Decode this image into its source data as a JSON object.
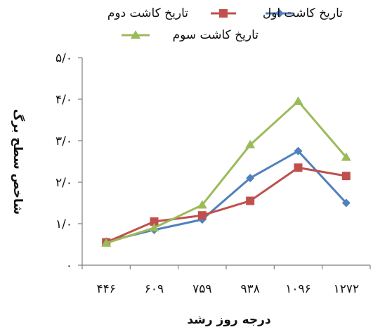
{
  "chart_data": {
    "type": "line",
    "categories": [
      "۴۴۶",
      "۶۰۹",
      "۷۵۹",
      "۹۳۸",
      "۱۰۹۶",
      "۱۲۷۲"
    ],
    "ylim": [
      0,
      5
    ],
    "yticks": [
      0,
      1,
      2,
      3,
      4,
      5
    ],
    "ytick_labels": [
      "۰",
      "۱/۰",
      "۲/۰",
      "۳/۰",
      "۴/۰",
      "۵/۰"
    ],
    "xlabel": "درجه روز رشد",
    "ylabel": "شاخص سطح برگ",
    "grid": false,
    "legend_position": "top",
    "series": [
      {
        "name": "تاریخ کاشت اول",
        "marker": "diamond",
        "color": "#4f81bd",
        "values": [
          0.57,
          0.85,
          1.1,
          2.1,
          2.75,
          1.5
        ]
      },
      {
        "name": "تاریخ کاشت دوم",
        "marker": "square",
        "color": "#c0504d",
        "values": [
          0.55,
          1.05,
          1.2,
          1.55,
          2.35,
          2.15
        ]
      },
      {
        "name": "تاریخ کاشت سوم",
        "marker": "triangle",
        "color": "#9bbb59",
        "values": [
          0.53,
          0.9,
          1.45,
          2.9,
          3.95,
          2.6
        ]
      }
    ]
  }
}
